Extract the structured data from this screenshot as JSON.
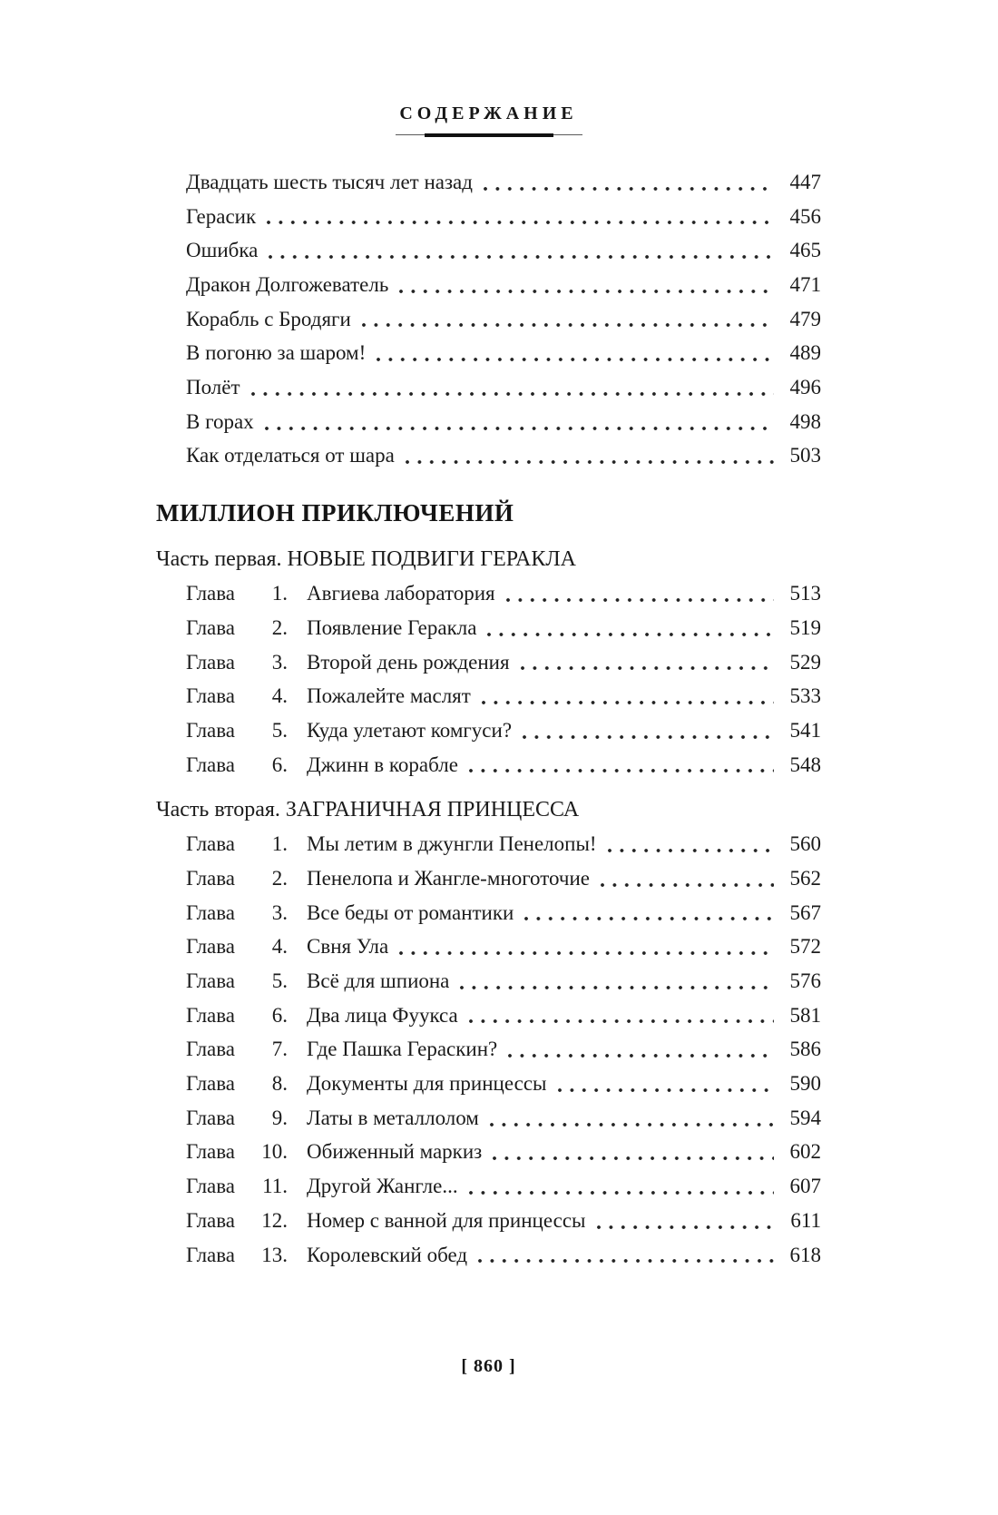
{
  "header": {
    "title": "СОДЕРЖАНИЕ"
  },
  "footer": {
    "page_label": "[ 860 ]"
  },
  "colors": {
    "text": "#1b1b1b",
    "background": "#ffffff",
    "rule": "#111111"
  },
  "toc": {
    "sections": [
      {
        "type": "entries",
        "entries": [
          {
            "title": "Двадцать шесть тысяч лет назад",
            "page": "447"
          },
          {
            "title": "Герасик",
            "page": "456"
          },
          {
            "title": "Ошибка",
            "page": "465"
          },
          {
            "title": "Дракон Долгожеватель",
            "page": "471"
          },
          {
            "title": "Корабль с Бродяги",
            "page": "479"
          },
          {
            "title": "В погоню за шаром!",
            "page": "489"
          },
          {
            "title": "Полёт",
            "page": "496"
          },
          {
            "title": "В горах",
            "page": "498"
          },
          {
            "title": "Как отделаться от шара",
            "page": "503"
          }
        ]
      },
      {
        "type": "heading",
        "text": "МИЛЛИОН ПРИКЛЮЧЕНИЙ"
      },
      {
        "type": "subheading",
        "text": "Часть первая. НОВЫЕ ПОДВИГИ ГЕРАКЛА"
      },
      {
        "type": "entries",
        "entries": [
          {
            "label": "Глава",
            "num": "1.",
            "title": "Авгиева лаборатория",
            "page": "513"
          },
          {
            "label": "Глава",
            "num": "2.",
            "title": "Появление Геракла",
            "page": "519"
          },
          {
            "label": "Глава",
            "num": "3.",
            "title": "Второй день рождения",
            "page": "529"
          },
          {
            "label": "Глава",
            "num": "4.",
            "title": "Пожалейте маслят",
            "page": "533"
          },
          {
            "label": "Глава",
            "num": "5.",
            "title": "Куда улетают комгуси?",
            "page": "541"
          },
          {
            "label": "Глава",
            "num": "6.",
            "title": "Джинн в корабле",
            "page": "548"
          }
        ]
      },
      {
        "type": "subheading",
        "text": "Часть вторая. ЗАГРАНИЧНАЯ ПРИНЦЕССА"
      },
      {
        "type": "entries",
        "entries": [
          {
            "label": "Глава",
            "num": "1.",
            "title": "Мы летим в джунгли Пенелопы!",
            "page": "560"
          },
          {
            "label": "Глава",
            "num": "2.",
            "title": "Пенелопа и Жангле-многоточие",
            "page": "562"
          },
          {
            "label": "Глава",
            "num": "3.",
            "title": "Все беды от романтики",
            "page": "567"
          },
          {
            "label": "Глава",
            "num": "4.",
            "title": "Свня Ула",
            "page": "572"
          },
          {
            "label": "Глава",
            "num": "5.",
            "title": "Всё для шпиона",
            "page": "576"
          },
          {
            "label": "Глава",
            "num": "6.",
            "title": "Два лица Фуукса",
            "page": "581"
          },
          {
            "label": "Глава",
            "num": "7.",
            "title": "Где Пашка Гераскин?",
            "page": "586"
          },
          {
            "label": "Глава",
            "num": "8.",
            "title": "Документы для принцессы",
            "page": "590"
          },
          {
            "label": "Глава",
            "num": "9.",
            "title": "Латы в металлолом",
            "page": "594"
          },
          {
            "label": "Глава",
            "num": "10.",
            "title": "Обиженный маркиз",
            "page": "602"
          },
          {
            "label": "Глава",
            "num": "11.",
            "title": "Другой Жангле...",
            "page": "607"
          },
          {
            "label": "Глава",
            "num": "12.",
            "title": "Номер с ванной для принцессы",
            "page": "611"
          },
          {
            "label": "Глава",
            "num": "13.",
            "title": "Королевский обед",
            "page": "618"
          }
        ]
      }
    ]
  }
}
